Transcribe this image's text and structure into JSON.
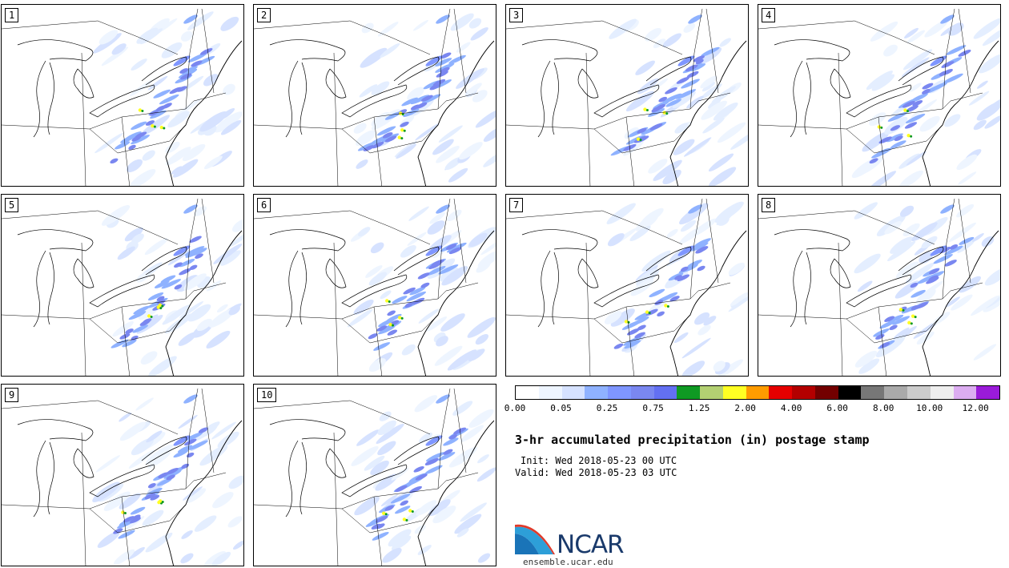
{
  "panels": [
    {
      "label": "1"
    },
    {
      "label": "2"
    },
    {
      "label": "3"
    },
    {
      "label": "4"
    },
    {
      "label": "5"
    },
    {
      "label": "6"
    },
    {
      "label": "7"
    },
    {
      "label": "8"
    },
    {
      "label": "9"
    },
    {
      "label": "10"
    }
  ],
  "colorbar": {
    "colors": [
      "#ffffff",
      "#eef5ff",
      "#d6e2ff",
      "#8fb2ff",
      "#7f96ff",
      "#7a87f0",
      "#6370f2",
      "#0f9a23",
      "#b3d072",
      "#ffff23",
      "#ff9c00",
      "#e60000",
      "#b30000",
      "#730000",
      "#000000",
      "#777777",
      "#aaaaaa",
      "#cccccc",
      "#eeeeee",
      "#dcadf1",
      "#9a1bd9"
    ],
    "tick_labels": [
      "0.00",
      "0.05",
      "0.25",
      "0.75",
      "1.25",
      "2.00",
      "4.00",
      "6.00",
      "8.00",
      "10.00",
      "12.00"
    ]
  },
  "title": "3-hr accumulated precipitation (in) postage stamp",
  "init": "Init: Wed 2018-05-23 00 UTC",
  "valid": "Valid: Wed 2018-05-23 03 UTC",
  "logo": {
    "text": "NCAR",
    "site": "ensemble.ucar.edu"
  }
}
